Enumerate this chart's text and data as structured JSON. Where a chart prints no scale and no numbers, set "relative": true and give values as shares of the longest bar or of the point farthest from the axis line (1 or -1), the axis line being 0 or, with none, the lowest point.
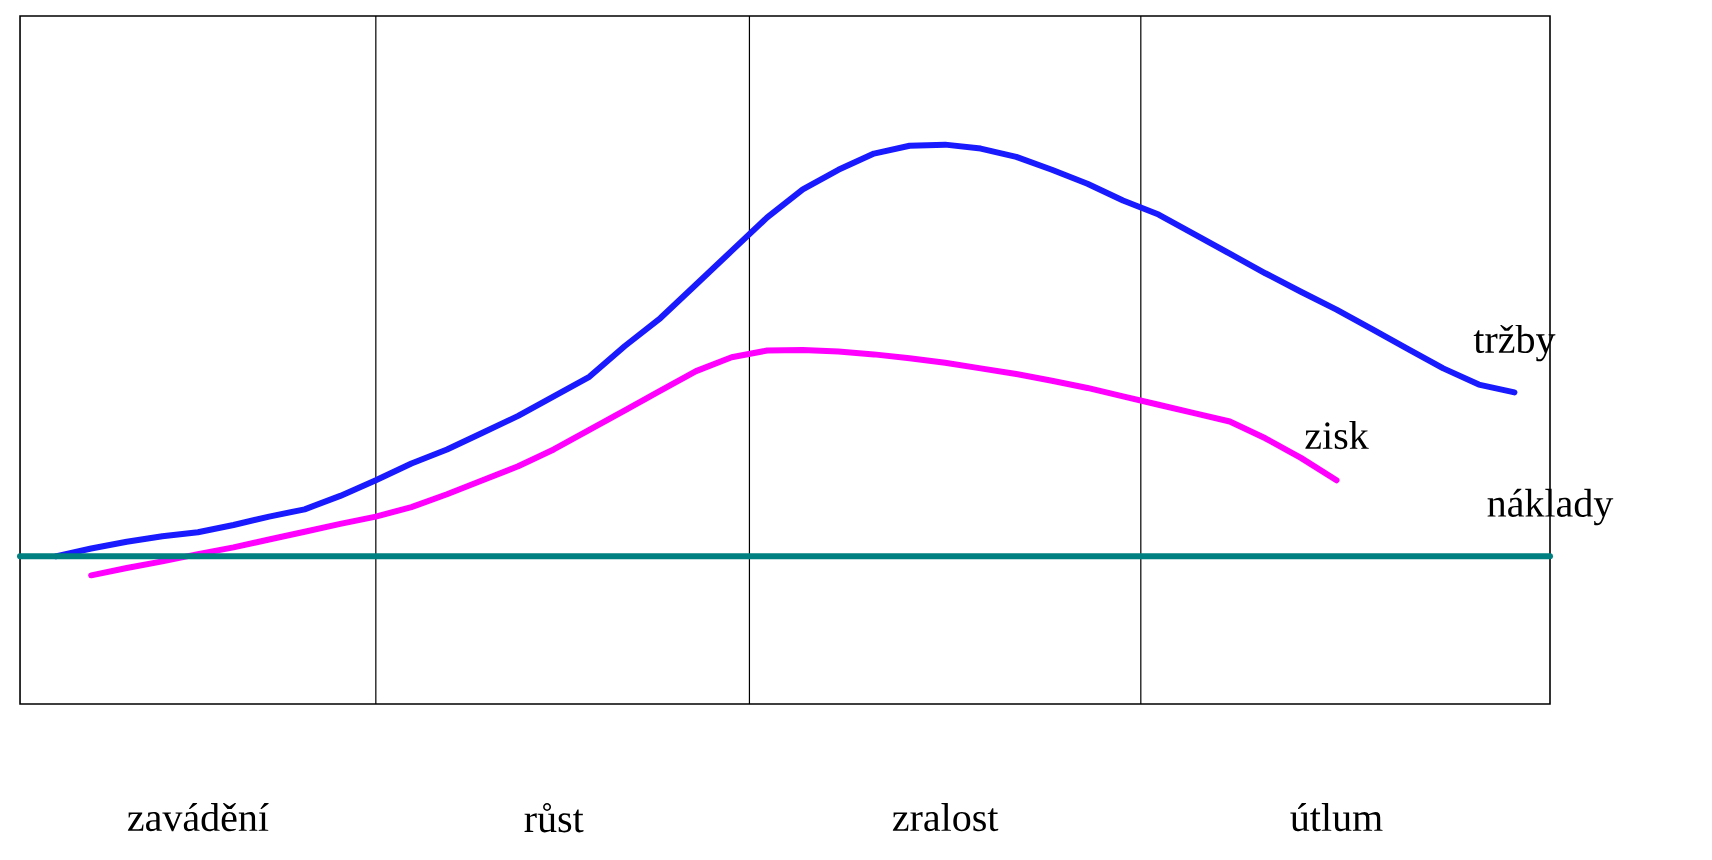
{
  "chart_data": {
    "type": "line",
    "relative": true,
    "tick_labels": "x",
    "marker": "none",
    "line_style": "solid",
    "categories": [
      null,
      null,
      null,
      null,
      null,
      "zavádění",
      null,
      null,
      null,
      null,
      null,
      null,
      null,
      null,
      null,
      "růst",
      null,
      null,
      null,
      null,
      null,
      null,
      null,
      null,
      null,
      null,
      "zralost",
      null,
      null,
      null,
      null,
      null,
      null,
      null,
      null,
      null,
      null,
      "útlum",
      null,
      null,
      null,
      null,
      null,
      null
    ],
    "series": [
      {
        "name": "tržby",
        "color": "#1a1aff",
        "values": [
          null,
          0.264,
          0.278,
          0.29,
          0.3,
          0.307,
          0.32,
          0.335,
          0.348,
          0.372,
          0.4,
          0.43,
          0.455,
          0.485,
          0.515,
          0.55,
          0.585,
          0.64,
          0.69,
          0.75,
          0.81,
          0.87,
          0.92,
          0.955,
          0.984,
          0.998,
          1.0,
          0.993,
          0.978,
          0.955,
          0.93,
          0.9,
          0.875,
          0.84,
          0.805,
          0.77,
          0.737,
          0.705,
          0.67,
          0.635,
          0.6,
          0.571,
          0.557,
          null
        ]
      },
      {
        "name": "zisk",
        "color": "#ff00ff",
        "values": [
          null,
          null,
          0.23,
          0.243,
          0.255,
          0.268,
          0.28,
          0.294,
          0.308,
          0.322,
          0.335,
          0.352,
          0.375,
          0.4,
          0.425,
          0.455,
          0.49,
          0.525,
          0.56,
          0.595,
          0.62,
          0.632,
          0.633,
          0.63,
          0.625,
          0.618,
          0.61,
          0.6,
          0.59,
          0.578,
          0.565,
          0.55,
          0.535,
          0.52,
          0.505,
          0.475,
          0.44,
          0.4,
          null,
          null,
          null,
          null,
          null,
          null
        ]
      },
      {
        "name": "náklady",
        "color": "#008080",
        "values": [
          0.264,
          0.264,
          0.264,
          0.264,
          0.264,
          0.264,
          0.264,
          0.264,
          0.264,
          0.264,
          0.264,
          0.264,
          0.264,
          0.264,
          0.264,
          0.264,
          0.264,
          0.264,
          0.264,
          0.264,
          0.264,
          0.264,
          0.264,
          0.264,
          0.264,
          0.264,
          0.264,
          0.264,
          0.264,
          0.264,
          0.264,
          0.264,
          0.264,
          0.264,
          0.264,
          0.264,
          0.264,
          0.264,
          0.264,
          0.264,
          0.264,
          0.264,
          0.264,
          0.264
        ]
      }
    ]
  }
}
